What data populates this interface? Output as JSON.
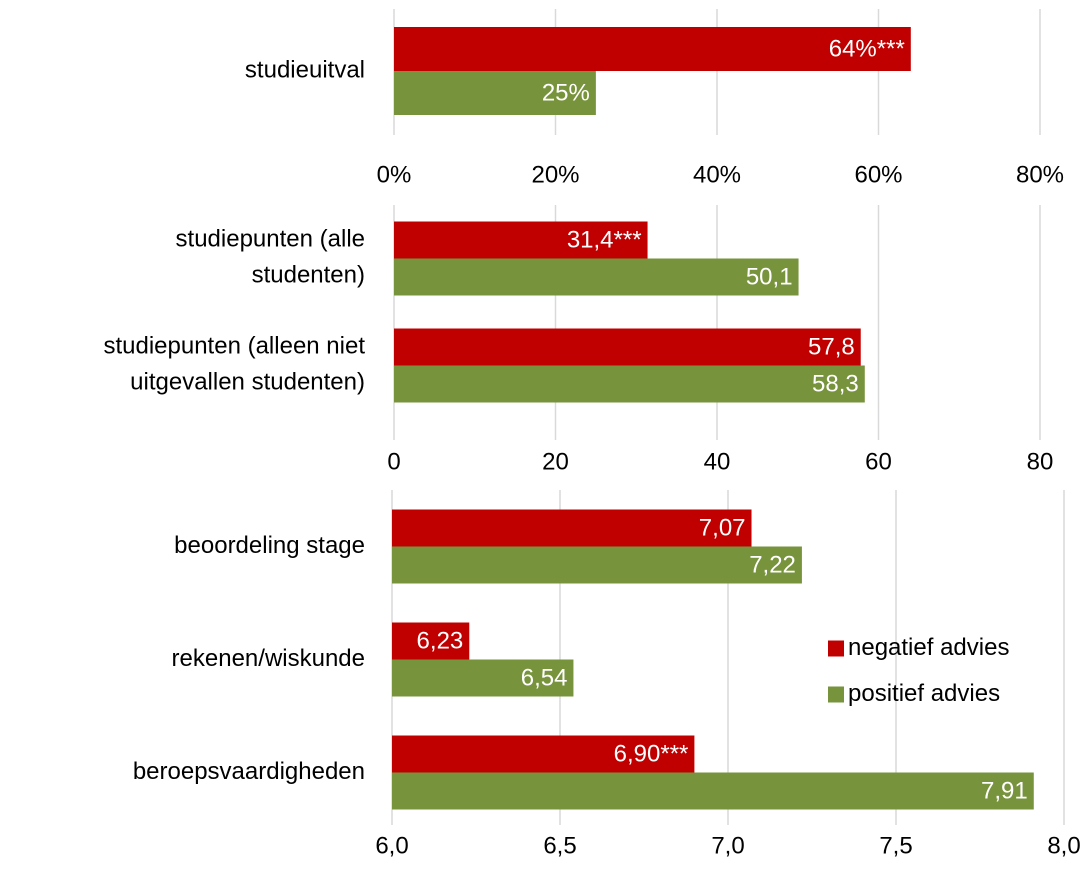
{
  "chart_data": [
    {
      "type": "barh",
      "categories": [
        "studieuitval"
      ],
      "series": [
        {
          "color": "#c00000",
          "values": [
            64
          ],
          "value_labels": [
            "64%***"
          ]
        },
        {
          "color": "#77933c",
          "values": [
            25
          ],
          "value_labels": [
            "25%"
          ]
        }
      ],
      "xlim": [
        0,
        80
      ],
      "xticks": [
        {
          "value": 0,
          "label": "0%"
        },
        {
          "value": 20,
          "label": "20%"
        },
        {
          "value": 40,
          "label": "40%"
        },
        {
          "value": 60,
          "label": "60%"
        },
        {
          "value": 80,
          "label": "80%"
        }
      ],
      "grid": true
    },
    {
      "type": "barh",
      "categories": [
        [
          "studiepunten (alle",
          "studenten)"
        ],
        [
          "studiepunten (alleen niet",
          "uitgevallen studenten)"
        ]
      ],
      "series": [
        {
          "color": "#c00000",
          "values": [
            31.4,
            57.8
          ],
          "value_labels": [
            "31,4***",
            "57,8"
          ]
        },
        {
          "color": "#77933c",
          "values": [
            50.1,
            58.3
          ],
          "value_labels": [
            "50,1",
            "58,3"
          ]
        }
      ],
      "xlim": [
        0,
        80
      ],
      "xticks": [
        0,
        20,
        40,
        60,
        80
      ],
      "grid": true
    },
    {
      "type": "barh",
      "categories": [
        "beoordeling stage",
        "rekenen/wiskunde",
        "beroepsvaardigheden"
      ],
      "series": [
        {
          "name": "negatief advies",
          "color": "#c00000",
          "values": [
            7.07,
            6.23,
            6.9
          ],
          "value_labels": [
            "7,07",
            "6,23",
            "6,90***"
          ]
        },
        {
          "name": "positief advies",
          "color": "#77933c",
          "values": [
            7.22,
            6.54,
            7.91
          ],
          "value_labels": [
            "7,22",
            "6,54",
            "7,91"
          ]
        }
      ],
      "xlim": [
        6,
        8
      ],
      "xticks": [
        {
          "value": 6,
          "label": "6,0"
        },
        {
          "value": 6.5,
          "label": "6,5"
        },
        {
          "value": 7,
          "label": "7,0"
        },
        {
          "value": 7.5,
          "label": "7,5"
        },
        {
          "value": 8,
          "label": "8,0"
        }
      ],
      "grid": true,
      "legend": "right"
    }
  ]
}
